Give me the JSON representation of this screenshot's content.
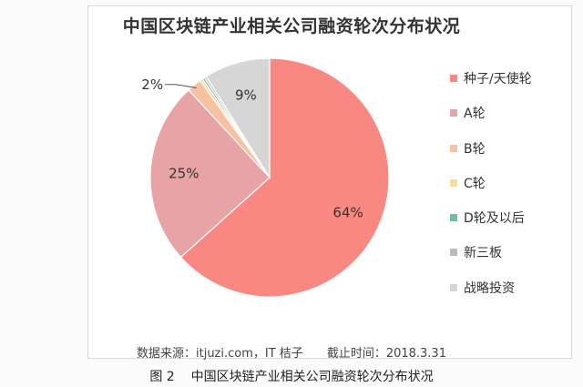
{
  "chart_data": {
    "type": "pie",
    "title": "中国区块链产业相关公司融资轮次分布状况",
    "categories": [
      "种子/天使轮",
      "A轮",
      "B轮",
      "C轮",
      "D轮及以后",
      "新三板",
      "战略投资"
    ],
    "values": [
      64,
      25,
      2,
      0.4,
      0.3,
      0.3,
      9
    ],
    "colors": [
      "#fa8882",
      "#e8a3a6",
      "#f6c2a2",
      "#f9d9a4",
      "#6dbfa1",
      "#bcbcbc",
      "#d6d6d6"
    ],
    "data_labels": [
      "64%",
      "25%",
      "2%",
      "",
      "",
      "",
      "9%"
    ],
    "legend_position": "right",
    "start": "top, clockwise"
  },
  "source_text": "数据来源：itjuzi.com，IT 桔子",
  "cutoff_text": "截止时间：2018.3.31",
  "caption_figure": "图 2",
  "caption_text": "中国区块链产业相关公司融资轮次分布状况"
}
